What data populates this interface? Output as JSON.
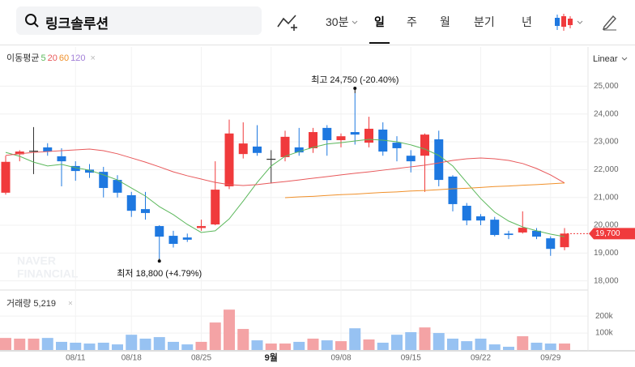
{
  "toolbar": {
    "search": "링크솔루션",
    "tabs": [
      "30분",
      "일",
      "주",
      "월",
      "분기",
      "년"
    ],
    "selected": 1
  },
  "chart_data": {
    "type": "candlestick",
    "categories": [
      null,
      null,
      null,
      null,
      null,
      "08/11",
      null,
      null,
      null,
      "08/18",
      null,
      null,
      null,
      null,
      "08/25",
      null,
      null,
      null,
      null,
      "9월",
      null,
      null,
      null,
      null,
      "09/08",
      null,
      null,
      null,
      null,
      "09/15",
      null,
      null,
      null,
      null,
      "09/22",
      null,
      null,
      null,
      null,
      "09/29",
      null
    ],
    "open": [
      21170,
      22550,
      22680,
      22800,
      22480,
      22130,
      22000,
      21920,
      21630,
      21080,
      20580,
      19970,
      19620,
      19560,
      19900,
      20030,
      21400,
      22560,
      22830,
      22390,
      22450,
      22800,
      22770,
      23500,
      23060,
      23350,
      22970,
      23440,
      22970,
      22500,
      22500,
      23090,
      21750,
      20700,
      20320,
      20200,
      19700,
      19740,
      19800,
      19530,
      19210
    ],
    "high": [
      22500,
      22700,
      23530,
      22950,
      22770,
      22300,
      22200,
      22100,
      21800,
      21200,
      21200,
      20000,
      19800,
      19700,
      20200,
      22300,
      23800,
      23700,
      23600,
      22700,
      23400,
      23500,
      23500,
      23600,
      23300,
      24750,
      23900,
      23700,
      23200,
      22700,
      23300,
      23400,
      21800,
      20800,
      20400,
      20300,
      19800,
      20500,
      19900,
      19600,
      19900
    ],
    "low": [
      21100,
      22300,
      21840,
      22500,
      21400,
      21600,
      21700,
      21000,
      21000,
      20300,
      20200,
      18800,
      19200,
      19400,
      19800,
      20000,
      21300,
      22400,
      22500,
      21500,
      22300,
      22500,
      22600,
      22500,
      22800,
      22900,
      22800,
      22500,
      22300,
      21900,
      21200,
      21400,
      20500,
      20000,
      20000,
      19600,
      19500,
      19700,
      19500,
      18900,
      19100
    ],
    "close": [
      22280,
      22650,
      22680,
      22650,
      22300,
      21950,
      21890,
      21340,
      21170,
      20520,
      20440,
      19590,
      19330,
      19480,
      19970,
      21280,
      23300,
      22940,
      22600,
      22390,
      23180,
      22620,
      23350,
      23060,
      23200,
      23260,
      23470,
      22650,
      22770,
      22300,
      23260,
      21630,
      20760,
      20170,
      20170,
      19650,
      19650,
      19910,
      19590,
      19150,
      19700
    ],
    "colors": {
      "up": "#f03a3c",
      "down": "#1e78e0",
      "flat": "#333333",
      "volume_up": "#f4a3a5",
      "volume_down": "#97c2f2"
    },
    "ylim": [
      17670,
      26410
    ],
    "yticks": [
      {
        "value": 18000,
        "label": "18,000"
      },
      {
        "value": 19000,
        "label": "19,000"
      },
      {
        "value": 20000,
        "label": "20,000"
      },
      {
        "value": 21000,
        "label": "21,000"
      },
      {
        "value": 22000,
        "label": "22,000"
      },
      {
        "value": 23000,
        "label": "23,000"
      },
      {
        "value": 24000,
        "label": "24,000"
      },
      {
        "value": 25000,
        "label": "25,000"
      }
    ],
    "scale": "Linear",
    "ma_title": "이동평균",
    "series": [
      {
        "name": "5",
        "color": "#5cb85c",
        "values": [
          22620,
          22480,
          22270,
          22130,
          22190,
          22070,
          21980,
          21810,
          21630,
          21340,
          21050,
          20670,
          20380,
          20030,
          19740,
          19800,
          20230,
          20870,
          21540,
          22130,
          22480,
          22650,
          22800,
          22920,
          22970,
          23030,
          23090,
          23060,
          23000,
          22890,
          22740,
          22510,
          22130,
          21540,
          20960,
          20470,
          20150,
          19940,
          19800,
          19680,
          19590
        ]
      },
      {
        "name": "20",
        "color": "#e8585a",
        "values": [
          22510,
          22570,
          22620,
          22650,
          22680,
          22710,
          22740,
          22680,
          22570,
          22420,
          22270,
          22100,
          21920,
          21780,
          21660,
          21540,
          21460,
          21430,
          21460,
          21520,
          21570,
          21630,
          21690,
          21750,
          21810,
          21870,
          21920,
          21980,
          22040,
          22100,
          22160,
          22240,
          22330,
          22390,
          22420,
          22390,
          22330,
          22220,
          22040,
          21810,
          21520
        ]
      },
      {
        "name": "60",
        "color": "#f0902a",
        "values": [
          null,
          null,
          null,
          null,
          null,
          null,
          null,
          null,
          null,
          null,
          null,
          null,
          null,
          null,
          null,
          null,
          null,
          null,
          null,
          null,
          20990,
          21020,
          21040,
          21070,
          21100,
          21120,
          21150,
          21180,
          21200,
          21230,
          21250,
          21280,
          21310,
          21330,
          21360,
          21390,
          21410,
          21440,
          21460,
          21490,
          21520
        ]
      },
      {
        "name": "120",
        "color": "#a27fd8",
        "values": [
          null,
          null,
          null,
          null,
          null,
          null,
          null,
          null,
          null,
          null,
          null,
          null,
          null,
          null,
          null,
          null,
          null,
          null,
          null,
          null,
          null,
          null,
          null,
          null,
          null,
          null,
          null,
          null,
          null,
          null,
          null,
          null,
          null,
          null,
          null,
          null,
          null,
          null,
          null,
          null,
          null
        ]
      }
    ],
    "annotations": [
      "최고 24,750 (-20.40%)",
      "최저 18,800 (+4.79%)"
    ],
    "current_price": {
      "value": 19700,
      "label": "19,700"
    },
    "watermark": [
      "NAVER",
      "FINANCIAL"
    ],
    "volume_title": "거래량 5,219",
    "volume": [
      71000,
      67000,
      67000,
      71000,
      48000,
      43000,
      38000,
      43000,
      33000,
      90000,
      67000,
      76000,
      48000,
      33000,
      48000,
      162000,
      238000,
      124000,
      57000,
      38000,
      38000,
      48000,
      67000,
      57000,
      52000,
      128000,
      62000,
      43000,
      90000,
      105000,
      133000,
      100000,
      67000,
      52000,
      67000,
      33000,
      19000,
      81000,
      43000,
      38000,
      38000
    ],
    "volume_ylim": [
      0,
      320000
    ],
    "volume_yticks": [
      {
        "value": 100000,
        "label": "100k"
      },
      {
        "value": 200000,
        "label": "200k"
      }
    ]
  }
}
